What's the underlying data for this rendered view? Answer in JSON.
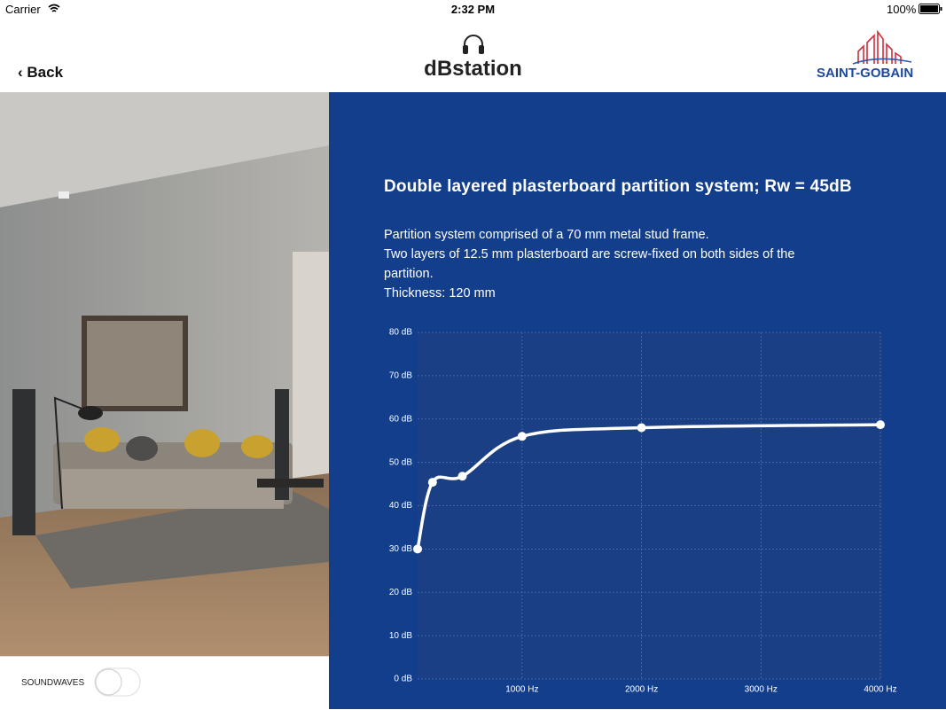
{
  "status_bar": {
    "carrier": "Carrier",
    "time": "2:32 PM",
    "battery": "100%"
  },
  "nav": {
    "back_icon": "‹",
    "back": "Back",
    "title": "dBstation",
    "logo": "SAINT-GOBAIN"
  },
  "controls": {
    "soundwaves": "SOUNDWAVES"
  },
  "content": {
    "heading": "Double layered plasterboard partition system; Rw = 45dB",
    "description": [
      "Partition system comprised of a 70 mm metal stud frame.",
      "Two layers of 12.5 mm plasterboard are screw-fixed on both sides of the partition.",
      "Thickness: 120 mm"
    ]
  },
  "chart_data": {
    "type": "line",
    "x": [
      125,
      250,
      500,
      1000,
      2000,
      4000
    ],
    "values": [
      30,
      45.4,
      46.8,
      56,
      58,
      58.7
    ],
    "color": "#ffffff",
    "xlim": [
      125,
      4000
    ],
    "xticks": [
      {
        "value": 1000,
        "label": "1000 Hz"
      },
      {
        "value": 2000,
        "label": "2000 Hz"
      },
      {
        "value": 3000,
        "label": "3000 Hz"
      },
      {
        "value": 4000,
        "label": "4000 Hz"
      }
    ],
    "ylim": [
      0,
      80
    ],
    "yticks": [
      {
        "value": 0,
        "label": "0 dB"
      },
      {
        "value": 10,
        "label": "10 dB"
      },
      {
        "value": 20,
        "label": "20 dB"
      },
      {
        "value": 30,
        "label": "30 dB"
      },
      {
        "value": 40,
        "label": "40 dB"
      },
      {
        "value": 50,
        "label": "50 dB"
      },
      {
        "value": 60,
        "label": "60 dB"
      },
      {
        "value": 70,
        "label": "70 dB"
      },
      {
        "value": 80,
        "label": "80 dB"
      }
    ],
    "grid": true
  }
}
